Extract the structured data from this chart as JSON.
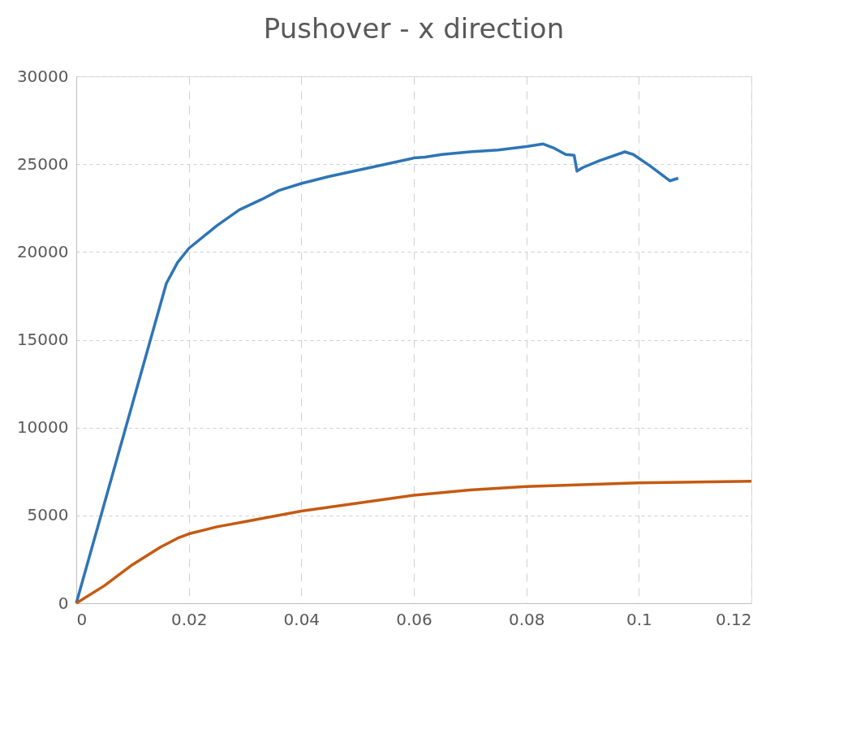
{
  "chart_data": {
    "type": "line",
    "title": "Pushover - x direction",
    "xlim": [
      0,
      0.12
    ],
    "xticks": [
      0,
      0.02,
      0.04,
      0.06,
      0.08,
      {
        "value": 0.1,
        "label": "0.1"
      },
      0.12
    ],
    "ylim": [
      0,
      30000
    ],
    "yticks": [
      0,
      5000,
      10000,
      15000,
      20000,
      25000,
      30000
    ],
    "grid": true,
    "line_style": "solid",
    "marker": "none",
    "series": [
      {
        "color": "#2e75b6",
        "x": [
          0,
          0.016,
          0.018,
          0.02,
          0.025,
          0.029,
          0.033,
          0.036,
          0.04,
          0.045,
          0.05,
          0.055,
          0.06,
          0.062,
          0.065,
          0.07,
          0.075,
          0.08,
          0.083,
          0.085,
          0.087,
          0.0885,
          0.089,
          0.09,
          0.093,
          0.0975,
          0.099,
          0.102,
          0.1055,
          0.107
        ],
        "values": [
          0,
          18200,
          19400,
          20200,
          21500,
          22400,
          23000,
          23500,
          23900,
          24300,
          24650,
          25000,
          25350,
          25400,
          25550,
          25700,
          25800,
          26000,
          26150,
          25900,
          25550,
          25500,
          24600,
          24800,
          25200,
          25700,
          25550,
          24900,
          24050,
          24200
        ]
      },
      {
        "color": "#c55a11",
        "x": [
          0,
          0.005,
          0.01,
          0.015,
          0.018,
          0.02,
          0.025,
          0.03,
          0.04,
          0.05,
          0.06,
          0.07,
          0.08,
          0.09,
          0.1,
          0.12
        ],
        "values": [
          0,
          1000,
          2200,
          3200,
          3700,
          3950,
          4350,
          4650,
          5250,
          5700,
          6150,
          6450,
          6650,
          6750,
          6850,
          6950
        ]
      }
    ]
  }
}
